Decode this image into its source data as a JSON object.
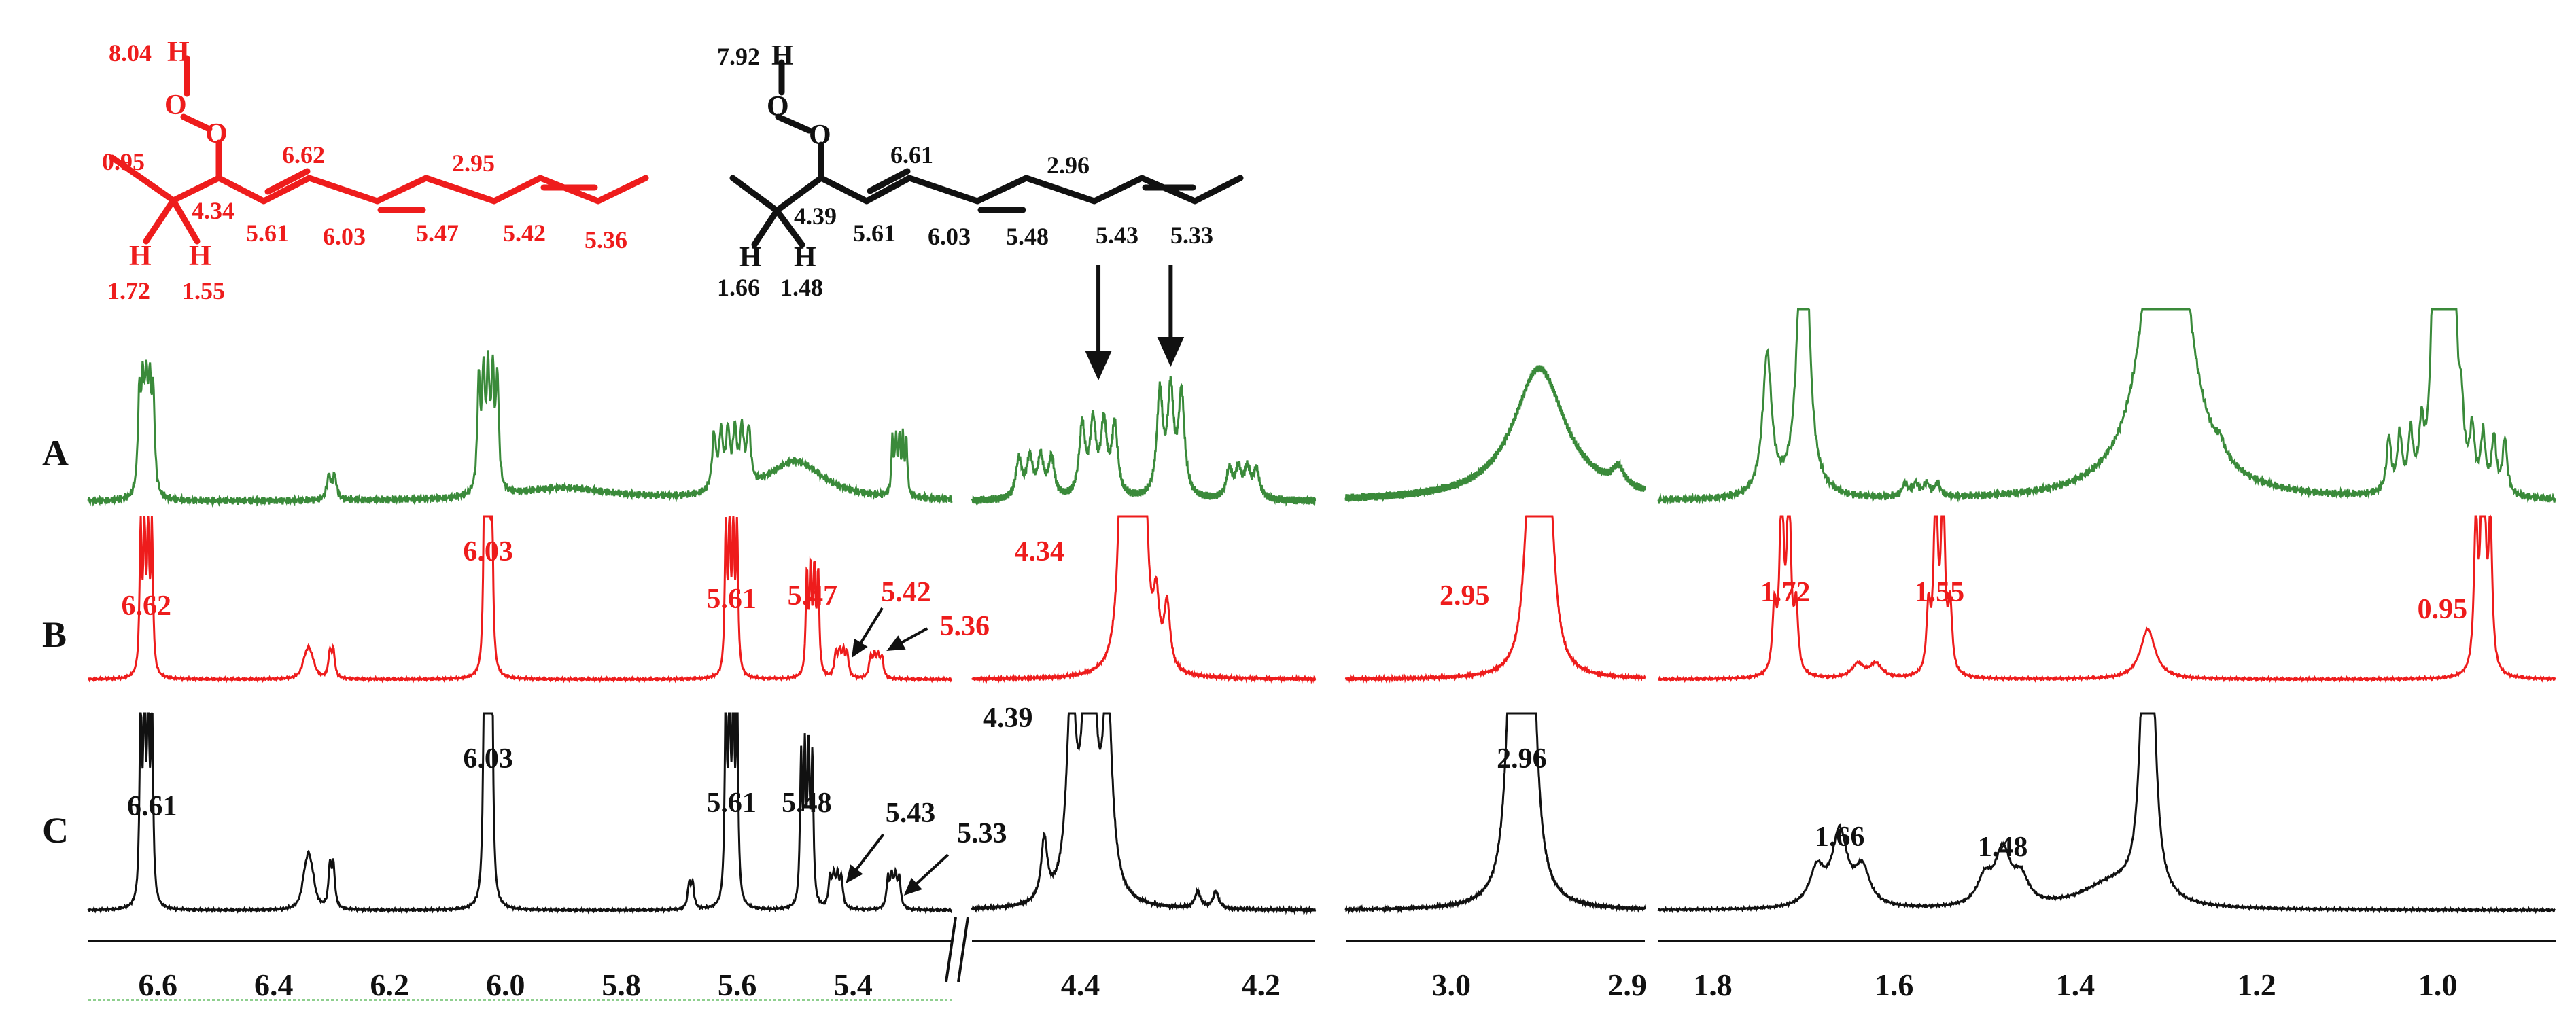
{
  "colors": {
    "trace_a": "#3a8a3a",
    "trace_b": "#ee1c1c",
    "trace_c": "#111111",
    "structure_red": "#ee1c1c",
    "structure_black": "#111111",
    "axis": "#111111",
    "axis_baseline": "#8fcf8f"
  },
  "chart_data": [
    {
      "type": "line",
      "panel": "structures",
      "structure_red": {
        "labels": {
          "oh": "8.04",
          "h_top": "H",
          "o1": "O",
          "o2": "O",
          "ch3": "0.95",
          "ch": "4.34",
          "c1": "6.62",
          "c2": "5.61",
          "c3": "6.03",
          "c4": "5.47",
          "ch2": "2.95",
          "c5": "5.42",
          "c6": "5.36",
          "h1": "H",
          "h2": "H",
          "h1_val": "1.72",
          "h2_val": "1.55"
        }
      },
      "structure_black": {
        "labels": {
          "oh": "7.92",
          "h_top": "H",
          "o1": "O",
          "o2": "O",
          "ch": "4.39",
          "c1": "6.61",
          "c2": "5.61",
          "c3": "6.03",
          "c4": "5.48",
          "ch2": "2.96",
          "c5": "5.43",
          "c6": "5.33",
          "h1": "H",
          "h2": "H",
          "h1_val": "1.66",
          "h2_val": "1.48"
        }
      }
    },
    {
      "type": "line",
      "panel": "spectra",
      "row_labels": [
        "A",
        "B",
        "C"
      ],
      "segments": [
        {
          "name": "seg1",
          "xlim": [
            6.72,
            5.23
          ],
          "ticks": [
            "6.6",
            "6.4",
            "6.2",
            "6.0",
            "5.8",
            "5.6",
            "5.4"
          ],
          "tick_values": [
            6.6,
            6.4,
            6.2,
            6.0,
            5.8,
            5.6,
            5.4
          ]
        },
        {
          "name": "seg2",
          "xlim": [
            4.52,
            4.14
          ],
          "ticks": [
            "4.4",
            "4.2"
          ],
          "tick_values": [
            4.4,
            4.2
          ]
        },
        {
          "name": "seg3",
          "xlim": [
            3.06,
            2.89
          ],
          "ticks": [
            "3.0",
            "2.9"
          ],
          "tick_values": [
            3.0,
            2.9
          ]
        },
        {
          "name": "seg4",
          "xlim": [
            1.86,
            0.87
          ],
          "ticks": [
            "1.8",
            "1.6",
            "1.4",
            "1.2",
            "1.0"
          ],
          "tick_values": [
            1.8,
            1.6,
            1.4,
            1.2,
            1.0
          ]
        }
      ],
      "peaks_b": [
        {
          "ppm": 6.62,
          "label": "6.62"
        },
        {
          "ppm": 6.03,
          "label": "6.03"
        },
        {
          "ppm": 5.61,
          "label": "5.61"
        },
        {
          "ppm": 5.47,
          "label": "5.47"
        },
        {
          "ppm": 5.42,
          "label": "5.42"
        },
        {
          "ppm": 5.36,
          "label": "5.36"
        },
        {
          "ppm": 4.34,
          "label": "4.34"
        },
        {
          "ppm": 2.95,
          "label": "2.95"
        },
        {
          "ppm": 1.72,
          "label": "1.72"
        },
        {
          "ppm": 1.55,
          "label": "1.55"
        },
        {
          "ppm": 0.95,
          "label": "0.95"
        }
      ],
      "peaks_c": [
        {
          "ppm": 6.61,
          "label": "6.61"
        },
        {
          "ppm": 6.03,
          "label": "6.03"
        },
        {
          "ppm": 5.61,
          "label": "5.61"
        },
        {
          "ppm": 5.48,
          "label": "5.48"
        },
        {
          "ppm": 5.43,
          "label": "5.43"
        },
        {
          "ppm": 5.33,
          "label": "5.33"
        },
        {
          "ppm": 4.39,
          "label": "4.39"
        },
        {
          "ppm": 2.96,
          "label": "2.96"
        },
        {
          "ppm": 1.66,
          "label": "1.66"
        },
        {
          "ppm": 1.48,
          "label": "1.48"
        }
      ]
    }
  ]
}
